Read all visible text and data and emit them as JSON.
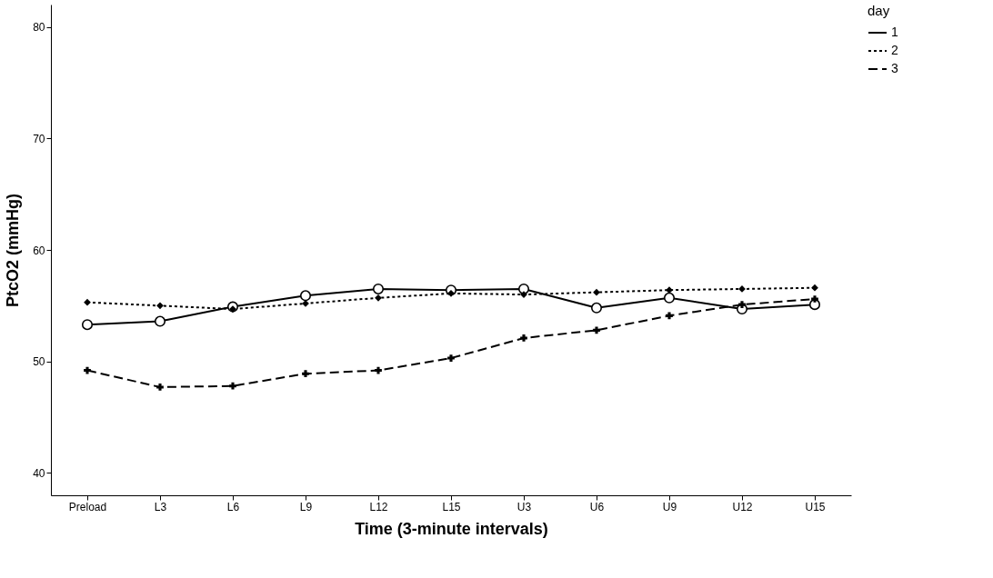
{
  "chart_data": {
    "type": "line",
    "xlabel": "Time (3-minute intervals)",
    "ylabel": "PtcO2 (mmHg)",
    "legend_title": "day",
    "legend": "top right",
    "grid": false,
    "categories": [
      "Preload",
      "L3",
      "L6",
      "L9",
      "L12",
      "L15",
      "U3",
      "U6",
      "U9",
      "U12",
      "U15"
    ],
    "ylim": [
      38,
      82
    ],
    "yticks": [
      40,
      50,
      60,
      70,
      80
    ],
    "series": [
      {
        "name": "1",
        "color": "#000000",
        "line_style": "solid",
        "marker": "circle",
        "values": [
          53.3,
          53.6,
          54.9,
          55.9,
          56.5,
          56.4,
          56.5,
          54.8,
          55.7,
          54.7,
          55.1
        ]
      },
      {
        "name": "2",
        "color": "#000000",
        "line_style": "dotted",
        "marker": "diamond",
        "values": [
          55.3,
          55.0,
          54.7,
          55.2,
          55.7,
          56.1,
          56.0,
          56.2,
          56.4,
          56.5,
          56.6
        ]
      },
      {
        "name": "3",
        "color": "#000000",
        "line_style": "dashed",
        "marker": "cross",
        "values": [
          49.2,
          47.7,
          47.8,
          48.9,
          49.2,
          50.3,
          52.1,
          52.8,
          54.1,
          55.1,
          55.6
        ]
      }
    ]
  }
}
